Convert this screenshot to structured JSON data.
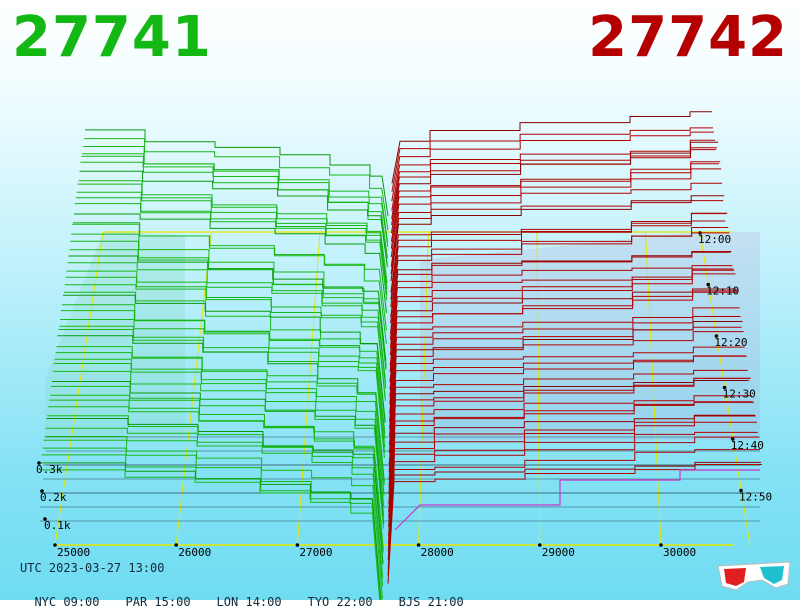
{
  "header": {
    "bid_price": "27741",
    "ask_price": "27742"
  },
  "footer": {
    "utc": "UTC 2023-03-27 13:00",
    "zones": [
      {
        "code": "NYC",
        "time": "09:00"
      },
      {
        "code": "PAR",
        "time": "15:00"
      },
      {
        "code": "LON",
        "time": "14:00"
      },
      {
        "code": "TYO",
        "time": "22:00"
      },
      {
        "code": "BJS",
        "time": "21:00"
      }
    ]
  },
  "colors": {
    "bid": "#14b814",
    "ask": "#b40000",
    "grid": "#e6e600",
    "volume_line": "#cc33cc"
  },
  "chart_data": {
    "type": "line",
    "x_axis": {
      "ticks": [
        25000,
        26000,
        27000,
        28000,
        29000,
        30000
      ],
      "tick_labels": [
        "25000",
        "26000",
        "27000",
        "28000",
        "29000",
        "30000"
      ]
    },
    "time_axis": {
      "ticks": [
        "12:00",
        "12:10",
        "12:20",
        "12:30",
        "12:40",
        "12:50"
      ]
    },
    "volume_axis": {
      "ticks": [
        0.1,
        0.2,
        0.3
      ],
      "tick_labels": [
        "0.1k",
        "0.2k",
        "0.3k"
      ]
    },
    "mid_price": 27741.5,
    "snapshots": 50,
    "bid_depth_at": [
      {
        "price": 25000,
        "cumulative": 0.58
      },
      {
        "price": 26000,
        "cumulative": 0.52
      },
      {
        "price": 27000,
        "cumulative": 0.42
      },
      {
        "price": 27500,
        "cumulative": 0.3
      }
    ],
    "ask_depth_at": [
      {
        "price": 28000,
        "cumulative": 0.4
      },
      {
        "price": 29000,
        "cumulative": 0.46
      },
      {
        "price": 30000,
        "cumulative": 0.53
      },
      {
        "price": 30500,
        "cumulative": 0.56
      }
    ],
    "series": [
      {
        "name": "27741",
        "side": "bid"
      },
      {
        "name": "27742",
        "side": "ask"
      }
    ],
    "grid": true
  }
}
